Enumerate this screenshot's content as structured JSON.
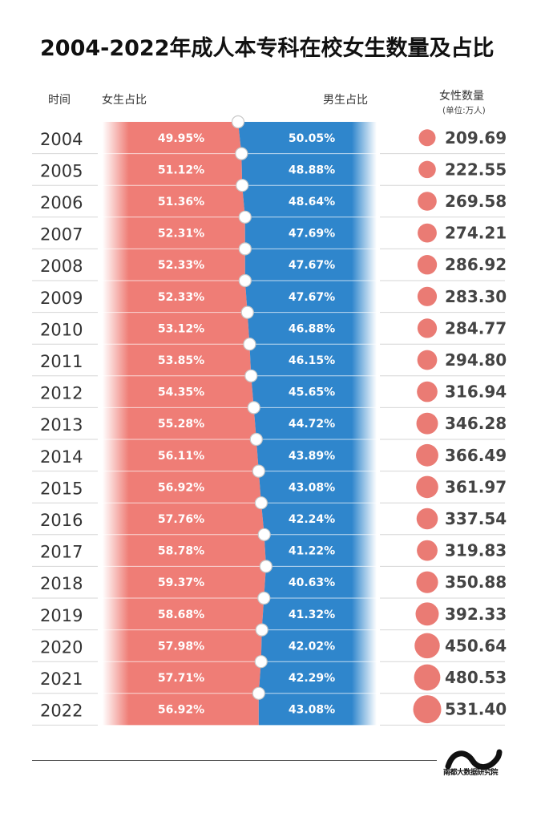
{
  "title": "2004-2022年成人本专科在校女生数量及占比",
  "headers": {
    "year": "时间",
    "female_ratio": "女生占比",
    "male_ratio": "男生占比",
    "count": "女性数量",
    "unit": "(单位:万人)"
  },
  "colors": {
    "female": "#ef7d76",
    "male": "#2f86cc",
    "bubble": "#ea7b74",
    "text_dark": "#444444"
  },
  "brand": "南都大数据研究院",
  "chart_data": {
    "type": "table",
    "title": "2004-2022年成人本专科在校女生数量及占比",
    "columns": [
      "时间",
      "女生占比",
      "男生占比",
      "女性数量"
    ],
    "unit": "万人",
    "rows": [
      {
        "year": "2004",
        "female_pct": 49.95,
        "female_label": "49.95%",
        "male_pct": 50.05,
        "male_label": "50.05%",
        "count": 209.69,
        "count_label": "209.69"
      },
      {
        "year": "2005",
        "female_pct": 51.12,
        "female_label": "51.12%",
        "male_pct": 48.88,
        "male_label": "48.88%",
        "count": 222.55,
        "count_label": "222.55"
      },
      {
        "year": "2006",
        "female_pct": 51.36,
        "female_label": "51.36%",
        "male_pct": 48.64,
        "male_label": "48.64%",
        "count": 269.58,
        "count_label": "269.58"
      },
      {
        "year": "2007",
        "female_pct": 52.31,
        "female_label": "52.31%",
        "male_pct": 47.69,
        "male_label": "47.69%",
        "count": 274.21,
        "count_label": "274.21"
      },
      {
        "year": "2008",
        "female_pct": 52.33,
        "female_label": "52.33%",
        "male_pct": 47.67,
        "male_label": "47.67%",
        "count": 286.92,
        "count_label": "286.92"
      },
      {
        "year": "2009",
        "female_pct": 52.33,
        "female_label": "52.33%",
        "male_pct": 47.67,
        "male_label": "47.67%",
        "count": 283.3,
        "count_label": "283.30"
      },
      {
        "year": "2010",
        "female_pct": 53.12,
        "female_label": "53.12%",
        "male_pct": 46.88,
        "male_label": "46.88%",
        "count": 284.77,
        "count_label": "284.77"
      },
      {
        "year": "2011",
        "female_pct": 53.85,
        "female_label": "53.85%",
        "male_pct": 46.15,
        "male_label": "46.15%",
        "count": 294.8,
        "count_label": "294.80"
      },
      {
        "year": "2012",
        "female_pct": 54.35,
        "female_label": "54.35%",
        "male_pct": 45.65,
        "male_label": "45.65%",
        "count": 316.94,
        "count_label": "316.94"
      },
      {
        "year": "2013",
        "female_pct": 55.28,
        "female_label": "55.28%",
        "male_pct": 44.72,
        "male_label": "44.72%",
        "count": 346.28,
        "count_label": "346.28"
      },
      {
        "year": "2014",
        "female_pct": 56.11,
        "female_label": "56.11%",
        "male_pct": 43.89,
        "male_label": "43.89%",
        "count": 366.49,
        "count_label": "366.49"
      },
      {
        "year": "2015",
        "female_pct": 56.92,
        "female_label": "56.92%",
        "male_pct": 43.08,
        "male_label": "43.08%",
        "count": 361.97,
        "count_label": "361.97"
      },
      {
        "year": "2016",
        "female_pct": 57.76,
        "female_label": "57.76%",
        "male_pct": 42.24,
        "male_label": "42.24%",
        "count": 337.54,
        "count_label": "337.54"
      },
      {
        "year": "2017",
        "female_pct": 58.78,
        "female_label": "58.78%",
        "male_pct": 41.22,
        "male_label": "41.22%",
        "count": 319.83,
        "count_label": "319.83"
      },
      {
        "year": "2018",
        "female_pct": 59.37,
        "female_label": "59.37%",
        "male_pct": 40.63,
        "male_label": "40.63%",
        "count": 350.88,
        "count_label": "350.88"
      },
      {
        "year": "2019",
        "female_pct": 58.68,
        "female_label": "58.68%",
        "male_pct": 41.32,
        "male_label": "41.32%",
        "count": 392.33,
        "count_label": "392.33"
      },
      {
        "year": "2020",
        "female_pct": 57.98,
        "female_label": "57.98%",
        "male_pct": 42.02,
        "male_label": "42.02%",
        "count": 450.64,
        "count_label": "450.64"
      },
      {
        "year": "2021",
        "female_pct": 57.71,
        "female_label": "57.71%",
        "male_pct": 42.29,
        "male_label": "42.29%",
        "count": 480.53,
        "count_label": "480.53"
      },
      {
        "year": "2022",
        "female_pct": 56.92,
        "female_label": "56.92%",
        "male_pct": 43.08,
        "male_label": "43.08%",
        "count": 531.4,
        "count_label": "531.40"
      }
    ]
  }
}
